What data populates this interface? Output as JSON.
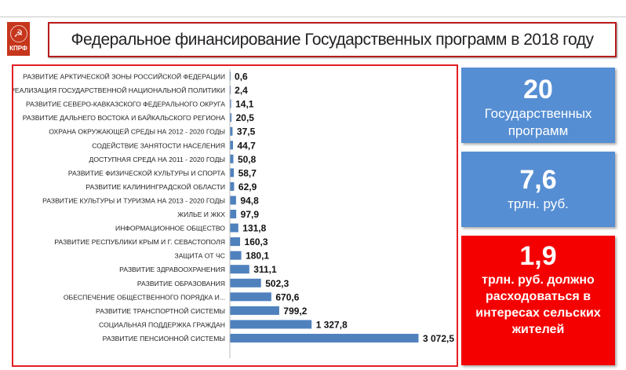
{
  "header": {
    "logo_text": "КПРФ",
    "title": "Федеральное финансирование Государственных программ в 2018 году"
  },
  "chart_data": {
    "type": "bar",
    "orientation": "horizontal",
    "title": "",
    "xlabel": "",
    "ylabel": "",
    "xlim": [
      0,
      3072.5
    ],
    "categories": [
      "РАЗВИТИЕ АРКТИЧЕСКОЙ ЗОНЫ РОССИЙСКОЙ ФЕДЕРАЦИИ",
      "РЕАЛИЗАЦИЯ ГОСУДАРСТВЕННОЙ НАЦИОНАЛЬНОЙ ПОЛИТИКИ",
      "РАЗВИТИЕ СЕВЕРО-КАВКАЗСКОГО ФЕДЕРАЛЬНОГО ОКРУГА",
      "РАЗВИТИЕ ДАЛЬНЕГО ВОСТОКА И БАЙКАЛЬСКОГО РЕГИОНА",
      "ОХРАНА ОКРУЖАЮЩЕЙ СРЕДЫ НА 2012 - 2020 ГОДЫ",
      "СОДЕЙСТВИЕ ЗАНЯТОСТИ НАСЕЛЕНИЯ",
      "ДОСТУПНАЯ СРЕДА НА 2011 - 2020 ГОДЫ",
      "РАЗВИТИЕ ФИЗИЧЕСКОЙ КУЛЬТУРЫ И СПОРТА",
      "РАЗВИТИЕ КАЛИНИНГРАДСКОЙ ОБЛАСТИ",
      "РАЗВИТИЕ КУЛЬТУРЫ И ТУРИЗМА НА 2013 - 2020 ГОДЫ",
      "ЖИЛЬЕ И ЖКХ",
      "ИНФОРМАЦИОННОЕ ОБЩЕСТВО",
      "РАЗВИТИЕ РЕСПУБЛИКИ КРЫМ И Г. СЕВАСТОПОЛЯ",
      "ЗАЩИТА ОТ ЧС",
      "РАЗВИТИЕ ЗДРАВООХРАНЕНИЯ",
      "РАЗВИТИЕ ОБРАЗОВАНИЯ",
      "ОБЕСПЕЧЕНИЕ ОБЩЕСТВЕННОГО ПОРЯДКА И...",
      "РАЗВИТИЕ ТРАНСПОРТНОЙ СИСТЕМЫ",
      "СОЦИАЛЬНАЯ ПОДДЕРЖКА ГРАЖДАН",
      "РАЗВИТИЕ ПЕНСИОННОЙ СИСТЕМЫ"
    ],
    "values": [
      0.6,
      2.4,
      14.1,
      20.5,
      37.5,
      44.7,
      50.8,
      58.7,
      62.9,
      94.8,
      97.9,
      131.8,
      160.3,
      180.1,
      311.1,
      502.3,
      670.6,
      799.2,
      1327.8,
      3072.5
    ],
    "labels": [
      "0,6",
      "2,4",
      "14,1",
      "20,5",
      "37,5",
      "44,7",
      "50,8",
      "58,7",
      "62,9",
      "94,8",
      "97,9",
      "131,8",
      "160,3",
      "180,1",
      "311,1",
      "502,3",
      "670,6",
      "799,2",
      "1 327,8",
      "3 072,5"
    ],
    "bar_color": "#4f81bd"
  },
  "stats": [
    {
      "value": "20",
      "text": "Государственных программ"
    },
    {
      "value": "7,6",
      "text": "трлн. руб."
    },
    {
      "value": "1,9",
      "text": "трлн. руб. должно расходоваться в интересах сельских жителей"
    }
  ]
}
